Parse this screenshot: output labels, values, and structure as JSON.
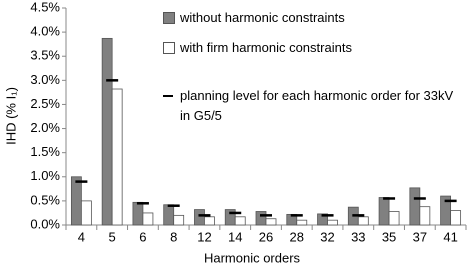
{
  "chart_data": {
    "type": "bar",
    "xlabel": "Harmonic orders",
    "ylabel": "IHD (% I₁)",
    "categories": [
      "4",
      "5",
      "6",
      "8",
      "12",
      "14",
      "26",
      "28",
      "32",
      "33",
      "35",
      "37",
      "41"
    ],
    "series": [
      {
        "name": "without harmonic constraints",
        "kind": "bar",
        "color": "#808080",
        "values": [
          1.0,
          3.87,
          0.47,
          0.42,
          0.32,
          0.32,
          0.28,
          0.22,
          0.23,
          0.37,
          0.57,
          0.77,
          0.6
        ]
      },
      {
        "name": "with firm harmonic constraints",
        "kind": "bar",
        "color": "#ffffff",
        "values": [
          0.5,
          2.82,
          0.25,
          0.2,
          0.17,
          0.17,
          0.13,
          0.1,
          0.1,
          0.17,
          0.28,
          0.38,
          0.3
        ]
      },
      {
        "name": "planning level for each harmonic order for 33kV in G5/5",
        "kind": "dash",
        "color": "#000000",
        "values": [
          0.9,
          3.0,
          0.45,
          0.4,
          0.2,
          0.25,
          0.2,
          0.2,
          0.2,
          0.2,
          0.55,
          0.55,
          0.5
        ]
      }
    ],
    "ylim": [
      0,
      4.5
    ],
    "yticks": [
      {
        "value": 0,
        "label": "0.0%"
      },
      {
        "value": 0.5,
        "label": "0.5%"
      },
      {
        "value": 1,
        "label": "1.0%"
      },
      {
        "value": 1.5,
        "label": "1.5%"
      },
      {
        "value": 2,
        "label": "2.0%"
      },
      {
        "value": 2.5,
        "label": "2.5%"
      },
      {
        "value": 3,
        "label": "3.0%"
      },
      {
        "value": 3.5,
        "label": "3.5%"
      },
      {
        "value": 4,
        "label": "4.0%"
      },
      {
        "value": 4.5,
        "label": "4.5%"
      }
    ],
    "grid": false
  }
}
